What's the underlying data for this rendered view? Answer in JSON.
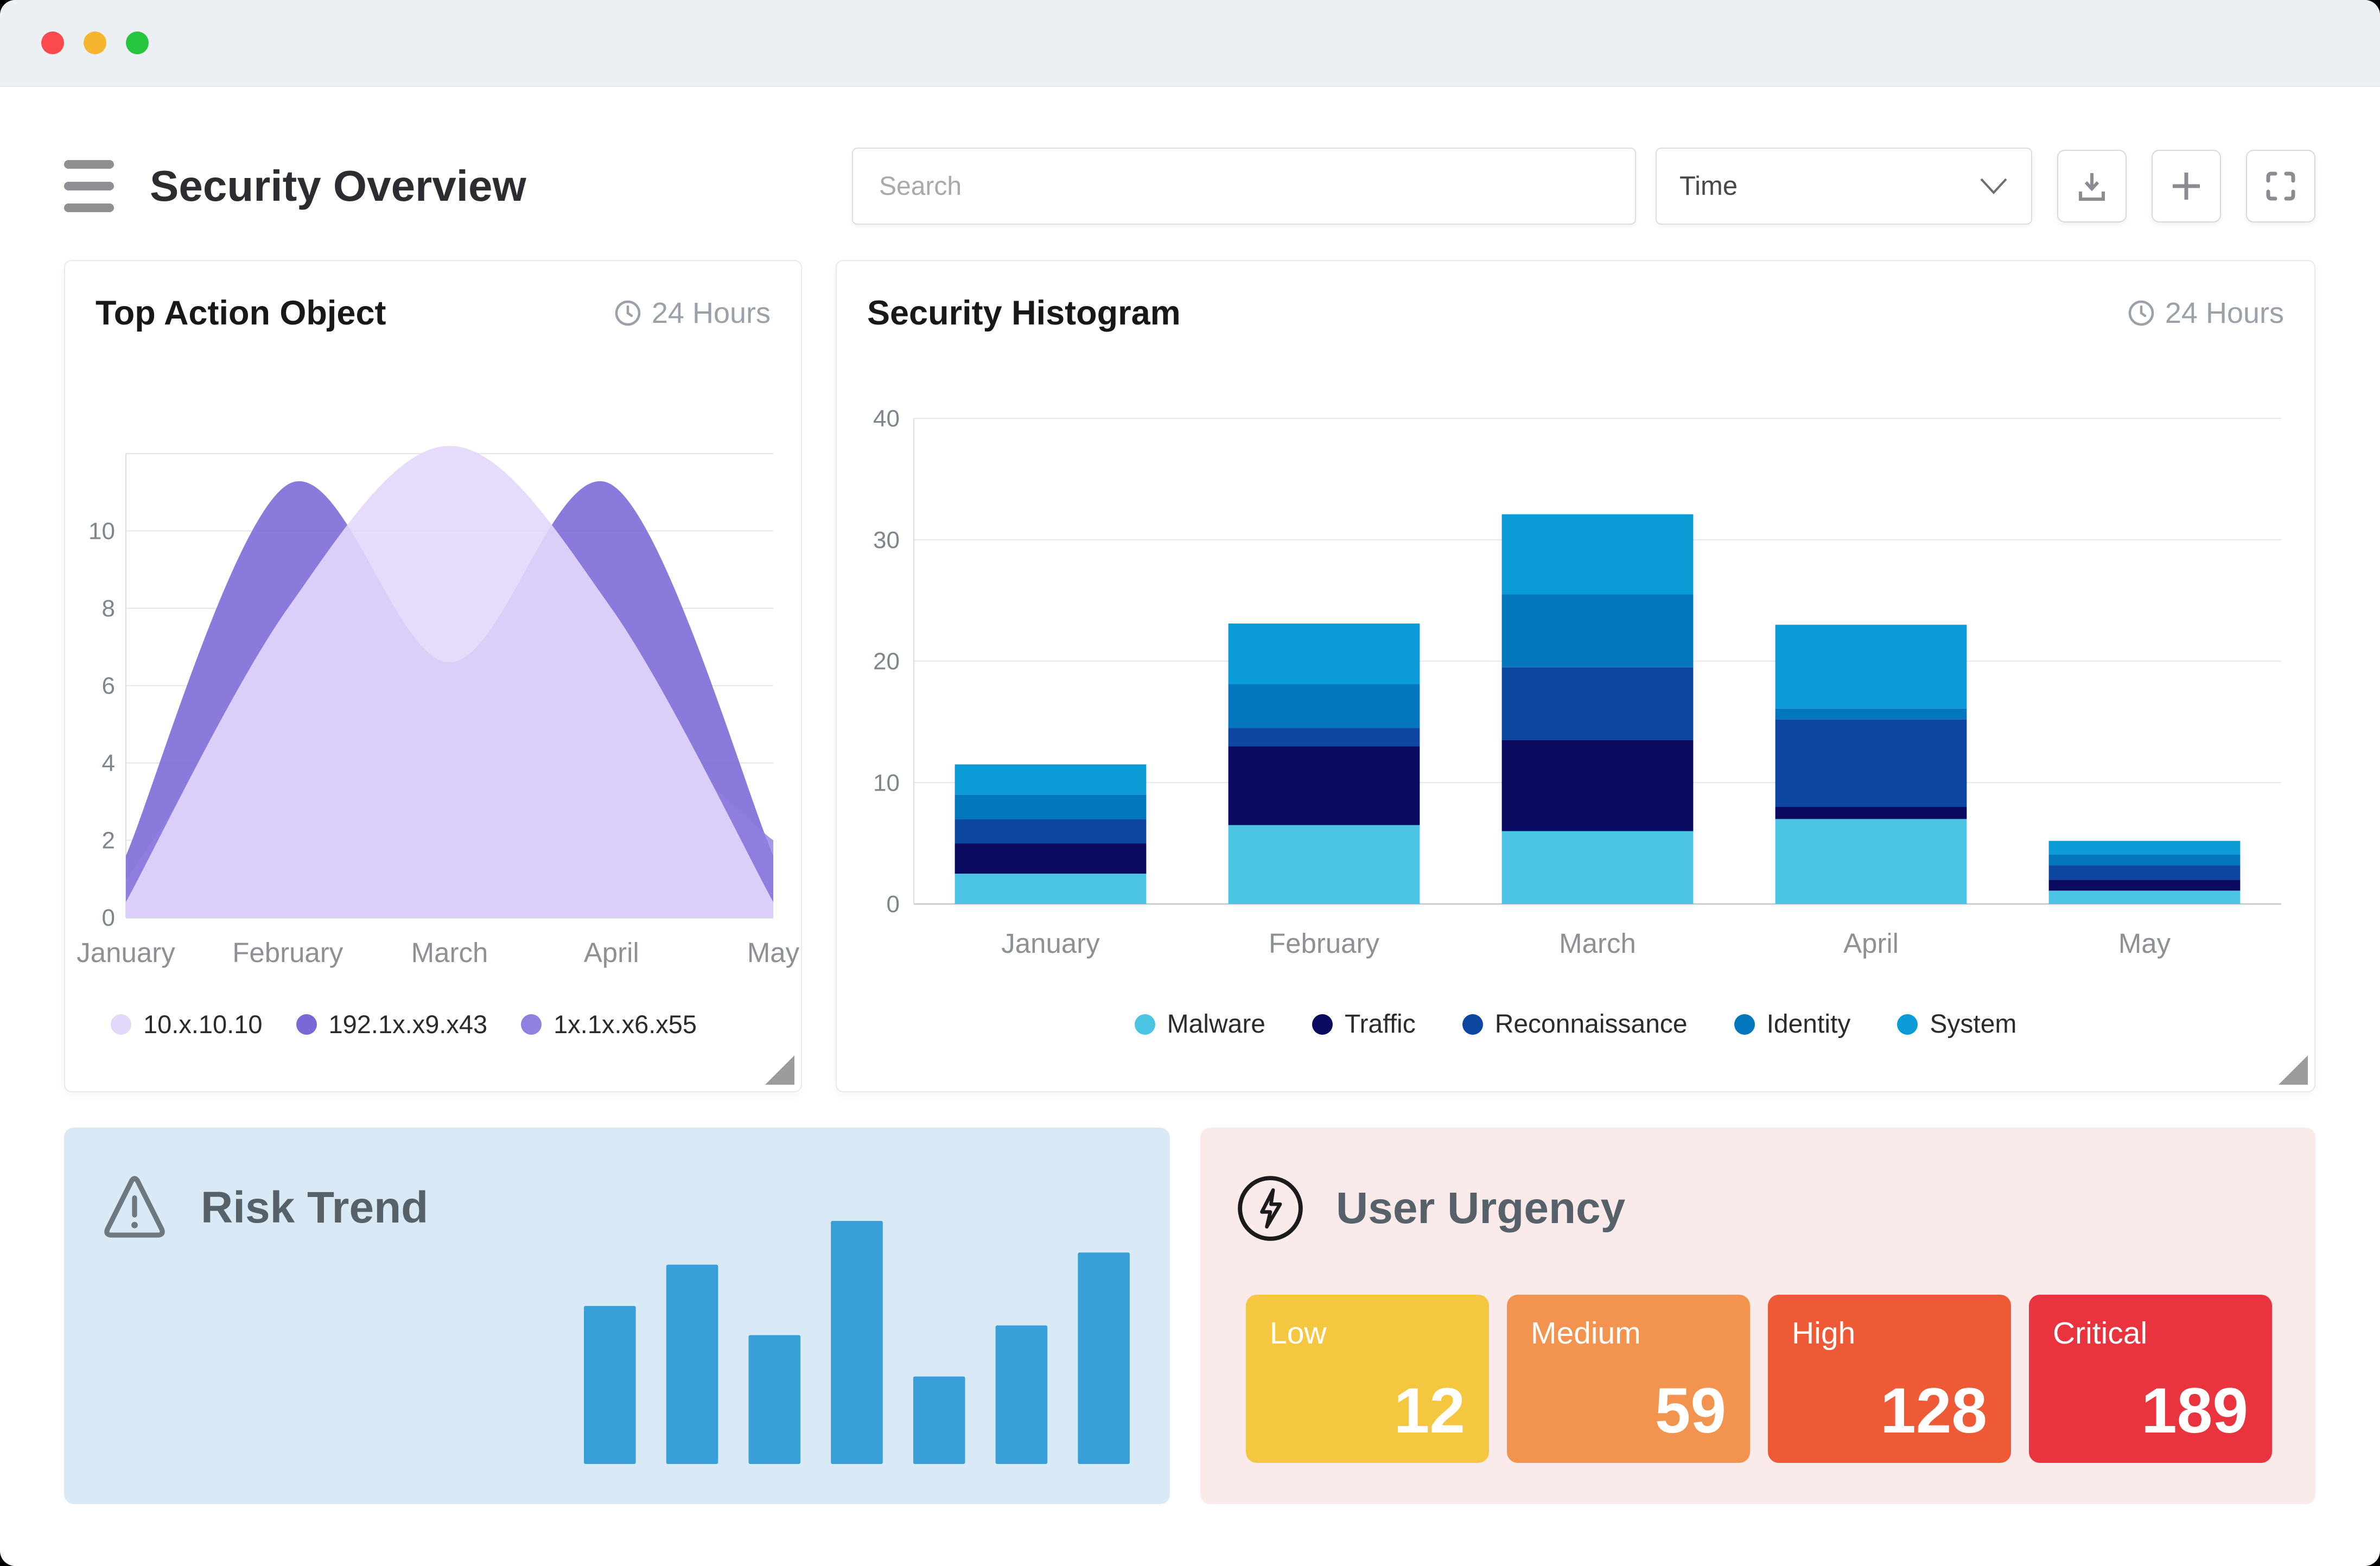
{
  "header": {
    "title": "Security Overview",
    "search_placeholder": "Search",
    "time_label": "Time"
  },
  "cards": {
    "top_action": {
      "time_badge": "24 Hours"
    },
    "histogram": {
      "time_badge": "24 Hours"
    }
  },
  "urgency": {
    "title": "User Urgency",
    "tiles": [
      {
        "label": "Low",
        "value": "12",
        "color": "#f5c63f"
      },
      {
        "label": "Medium",
        "value": "59",
        "color": "#f2934f"
      },
      {
        "label": "High",
        "value": "128",
        "color": "#ef5a36"
      },
      {
        "label": "Critical",
        "value": "189",
        "color": "#e93440"
      }
    ]
  },
  "icons": {
    "menu": "hamburger",
    "chevron": "chevron-down",
    "download": "download-tray",
    "add": "plus",
    "fullscreen": "corner-brackets",
    "clock": "clock",
    "risk": "warning-triangle",
    "urgency": "lightning-bolt"
  },
  "chart_data": [
    {
      "id": "top_action_object",
      "type": "area",
      "title": "Top Action Object",
      "x": [
        "January",
        "February",
        "March",
        "April",
        "May"
      ],
      "ylim": [
        0,
        12
      ],
      "yticks": [
        0,
        2,
        4,
        6,
        8,
        10
      ],
      "gridlines": [
        0,
        2,
        4,
        6,
        8,
        10,
        12
      ],
      "grid": true,
      "legend_position": "bottom-left",
      "series": [
        {
          "name": "10.x.10.10",
          "color": "#e3d7fb",
          "opacity": 0.9,
          "z": 3,
          "values": [
            0.4,
            8,
            12.2,
            8,
            0.4
          ]
        },
        {
          "name": "192.1x.x9.x43",
          "color": "#7b68d6",
          "opacity": 0.88,
          "z": 1,
          "values": [
            1.6,
            11.2,
            6.6,
            11.2,
            1.6
          ]
        },
        {
          "name": "1x.1x.x6.x55",
          "color": "#9080e0",
          "opacity": 0.8,
          "z": 2,
          "values": [
            1,
            6,
            3.2,
            5,
            2
          ]
        }
      ]
    },
    {
      "id": "security_histogram",
      "type": "stacked_bar",
      "title": "Security Histogram",
      "x": [
        "January",
        "February",
        "March",
        "April",
        "May"
      ],
      "ylim": [
        0,
        40
      ],
      "yticks": [
        0,
        10,
        20,
        30,
        40
      ],
      "grid": true,
      "legend_position": "bottom-center",
      "series": [
        {
          "name": "Malware",
          "color": "#4cc5e5",
          "values": [
            2.5,
            6.5,
            6,
            7,
            1.1
          ]
        },
        {
          "name": "Traffic",
          "color": "#0a0a60",
          "values": [
            2.5,
            6.5,
            7.5,
            1,
            0.9
          ]
        },
        {
          "name": "Reconnaissance",
          "color": "#0d47a1",
          "values": [
            2,
            1.5,
            6,
            7.2,
            1.2
          ]
        },
        {
          "name": "Identity",
          "color": "#0277bd",
          "values": [
            2,
            3.6,
            6,
            0.9,
            0.9
          ]
        },
        {
          "name": "System",
          "color": "#0b9cd8",
          "values": [
            2.5,
            5,
            6.6,
            6.9,
            1.1
          ]
        }
      ]
    },
    {
      "id": "risk_trend",
      "type": "bar",
      "title": "Risk Trend",
      "values": [
        65,
        82,
        53,
        100,
        36,
        57,
        87
      ],
      "ymax": 100,
      "color": "#389fd9",
      "grid": false
    }
  ]
}
